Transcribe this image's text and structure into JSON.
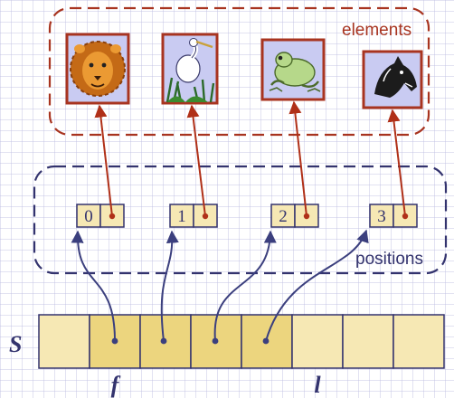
{
  "labels": {
    "elements": "elements",
    "positions": "positions",
    "sequence": "S",
    "first_marker": "f",
    "last_marker": "l"
  },
  "positions": [
    {
      "index": "0",
      "element": "lion"
    },
    {
      "index": "1",
      "element": "heron"
    },
    {
      "index": "2",
      "element": "frog"
    },
    {
      "index": "3",
      "element": "horse"
    }
  ],
  "array": {
    "cell_count": 8,
    "pointer_cells": [
      1,
      2,
      3,
      4
    ]
  },
  "colors": {
    "cell_fill": "#f6e8b4",
    "cell_fill_active": "#ecd57e",
    "cell_stroke": "#33336e",
    "elements_border": "#a83420",
    "positions_border": "#33336e",
    "element_pointer": "#b03018",
    "array_pointer": "#3b3f7e",
    "elements_label_color": "#a83420",
    "positions_label_color": "#33336e",
    "picture_background": "#c9cbf2"
  },
  "icons": [
    "lion-icon",
    "heron-icon",
    "frog-icon",
    "horse-icon"
  ]
}
